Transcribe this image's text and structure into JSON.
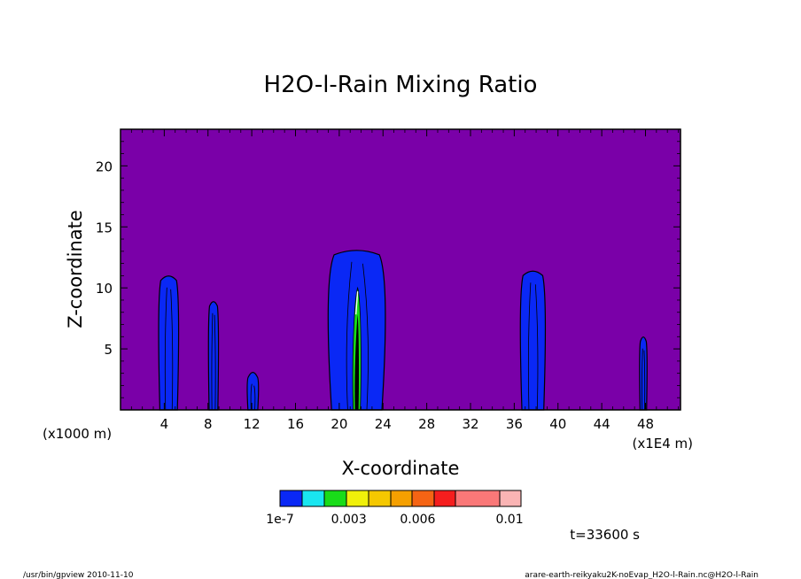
{
  "chart_data": {
    "type": "heatmap",
    "title": "H2O-l-Rain Mixing Ratio",
    "xlabel": "X-coordinate",
    "ylabel": "Z-coordinate",
    "x_unit_label": "(x1000 m)",
    "x_scale_label": "(x1E4 m)",
    "xlim": [
      0,
      51.2
    ],
    "ylim": [
      0,
      23
    ],
    "x_ticks": [
      4,
      8,
      12,
      16,
      20,
      24,
      28,
      32,
      36,
      40,
      44,
      48
    ],
    "y_ticks": [
      5,
      10,
      15,
      20
    ],
    "background_color": "#7a00a8",
    "colorbar": {
      "colors": [
        "#0a28f5",
        "#19e6f0",
        "#19dc19",
        "#f0f00a",
        "#f5c800",
        "#f5a000",
        "#f56414",
        "#f51e1e",
        "#fa7878",
        "#fab4b4"
      ],
      "tick_labels": [
        {
          "value": 0,
          "label": "1e-7"
        },
        {
          "value": 0.003,
          "label": "0.003"
        },
        {
          "value": 0.006,
          "label": "0.006"
        },
        {
          "value": 0.01,
          "label": "0.01"
        }
      ]
    },
    "plumes": [
      {
        "x_center": 4.4,
        "width": 1.6,
        "top": 10.9
      },
      {
        "x_center": 8.5,
        "width": 0.8,
        "top": 8.8
      },
      {
        "x_center": 12.1,
        "width": 0.9,
        "top": 3.0
      },
      {
        "x_center": 21.6,
        "width": 4.6,
        "top": 13.0,
        "core_top": 10.0
      },
      {
        "x_center": 37.7,
        "width": 2.0,
        "top": 11.3
      },
      {
        "x_center": 47.8,
        "width": 0.6,
        "top": 5.9
      }
    ]
  },
  "time_label": "t=33600 s",
  "footer_left": "/usr/bin/gpview  2010-11-10",
  "footer_right": "arare-earth-reikyaku2K-noEvap_H2O-l-Rain.nc@H2O-l-Rain"
}
